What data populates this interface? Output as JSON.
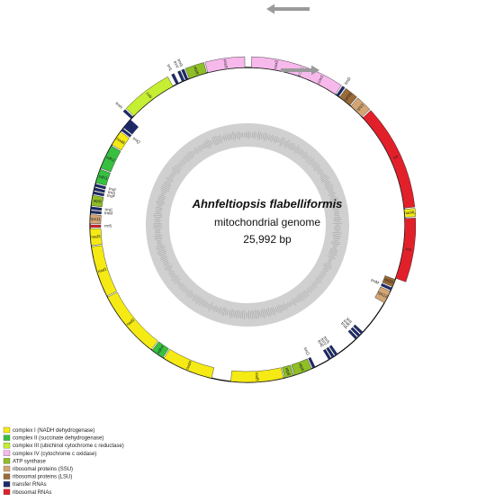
{
  "center": {
    "title": "Ahnfeltiopsis flabelliformis",
    "subtitle": "mitochondrial genome",
    "size": "25,992 bp"
  },
  "colors": {
    "nad": "#f5ea14",
    "sdh": "#37c040",
    "cob": "#c6ee32",
    "cox": "#f7b9ec",
    "atp": "#8fbf25",
    "rps": "#d4a574",
    "rpl": "#9b6b37",
    "trn": "#1c2a6e",
    "rrn": "#e2202a"
  },
  "legend": [
    {
      "label": "complex I (NADH dehydrogenase)",
      "color": "#f5ea14"
    },
    {
      "label": "complex II (succinate dehydrogenase)",
      "color": "#37c040"
    },
    {
      "label": "complex III (ubichinol cytochrome c reductase)",
      "color": "#c6ee32"
    },
    {
      "label": "complex IV (cytochrome c oxidase)",
      "color": "#f7b9ec"
    },
    {
      "label": "ATP synthase",
      "color": "#8fbf25"
    },
    {
      "label": "ribosomal proteins (SSU)",
      "color": "#d4a574"
    },
    {
      "label": "ribosomal proteins (LSU)",
      "color": "#9b6b37"
    },
    {
      "label": "transfer RNAs",
      "color": "#1c2a6e"
    },
    {
      "label": "ribosomal RNAs",
      "color": "#e2202a"
    }
  ],
  "genes": [
    {
      "name": "cox2",
      "start": 3,
      "end": 40,
      "strand": "out",
      "cls": "cox"
    },
    {
      "name": "cox1",
      "start": 41,
      "end": 72,
      "strand": "out",
      "cls": "cox"
    },
    {
      "name": "trnD",
      "start": 73,
      "end": 75,
      "strand": "out",
      "cls": "trn"
    },
    {
      "name": "rpl16",
      "start": 76,
      "end": 86,
      "strand": "out",
      "cls": "rpl"
    },
    {
      "name": "rps3",
      "start": 87,
      "end": 99,
      "strand": "out",
      "cls": "rps"
    },
    {
      "name": "rnl",
      "start": 100,
      "end": 178,
      "strand": "out",
      "cls": "rrn"
    },
    {
      "name": "nad4L",
      "start": 179,
      "end": 185,
      "strand": "out",
      "cls": "nad"
    },
    {
      "name": "rns",
      "start": 186,
      "end": 233,
      "strand": "out",
      "cls": "rrn"
    },
    {
      "name": "rpl20",
      "start": 234,
      "end": 240,
      "strand": "in",
      "cls": "rpl"
    },
    {
      "name": "trnM",
      "start": 241,
      "end": 243,
      "strand": "in",
      "cls": "trn"
    },
    {
      "name": "rps12",
      "start": 244,
      "end": 254,
      "strand": "in",
      "cls": "rps"
    },
    {
      "name": "trnI",
      "start": 282,
      "end": 284,
      "strand": "in",
      "cls": "trn"
    },
    {
      "name": "trnK",
      "start": 285,
      "end": 287,
      "strand": "in",
      "cls": "trn"
    },
    {
      "name": "trnA",
      "start": 288,
      "end": 290,
      "strand": "in",
      "cls": "trn"
    },
    {
      "name": "trnS",
      "start": 308,
      "end": 310,
      "strand": "in",
      "cls": "trn"
    },
    {
      "name": "trnY",
      "start": 311,
      "end": 313,
      "strand": "in",
      "cls": "trn"
    },
    {
      "name": "trnE",
      "start": 314,
      "end": 316,
      "strand": "in",
      "cls": "trn"
    },
    {
      "name": "trnG",
      "start": 328,
      "end": 330,
      "strand": "in",
      "cls": "trn"
    },
    {
      "name": "atp6",
      "start": 331,
      "end": 345,
      "strand": "in",
      "cls": "atp"
    },
    {
      "name": "atp8",
      "start": 346,
      "end": 353,
      "strand": "in",
      "cls": "atp"
    },
    {
      "name": "nad5",
      "start": 354,
      "end": 395,
      "strand": "in",
      "cls": "nad"
    },
    {
      "name": "nad4",
      "start": 410,
      "end": 450,
      "strand": "in",
      "cls": "nad"
    },
    {
      "name": "sdh4",
      "start": 451,
      "end": 461,
      "strand": "in",
      "cls": "sdh"
    },
    {
      "name": "nad2",
      "start": 462,
      "end": 515,
      "strand": "in",
      "cls": "nad"
    },
    {
      "name": "nad1",
      "start": 516,
      "end": 556,
      "strand": "in",
      "cls": "nad"
    },
    {
      "name": "nad3",
      "start": 557,
      "end": 570,
      "strand": "in",
      "cls": "nad"
    },
    {
      "name": "rrn5",
      "start": 571,
      "end": 573,
      "strand": "in",
      "cls": "rrn"
    },
    {
      "name": "rps11",
      "start": 574,
      "end": 581,
      "strand": "in",
      "cls": "rps"
    },
    {
      "name": "trnM",
      "start": 582,
      "end": 584,
      "strand": "in",
      "cls": "trn"
    },
    {
      "name": "trnC",
      "start": 585,
      "end": 587,
      "strand": "in",
      "cls": "trn"
    },
    {
      "name": "atp9",
      "start": 588,
      "end": 596,
      "strand": "in",
      "cls": "atp"
    },
    {
      "name": "trnP",
      "start": 597,
      "end": 599,
      "strand": "in",
      "cls": "trn"
    },
    {
      "name": "trnS",
      "start": 600,
      "end": 602,
      "strand": "in",
      "cls": "trn"
    },
    {
      "name": "trnF",
      "start": 603,
      "end": 605,
      "strand": "in",
      "cls": "trn"
    },
    {
      "name": "sdh3",
      "start": 606,
      "end": 617,
      "strand": "in",
      "cls": "sdh"
    },
    {
      "name": "sdh2",
      "start": 618,
      "end": 637,
      "strand": "in",
      "cls": "sdh"
    },
    {
      "name": "nad6",
      "start": 638,
      "end": 650,
      "strand": "in",
      "cls": "nad"
    },
    {
      "name": "trnQ",
      "start": 651,
      "end": 653,
      "strand": "in",
      "cls": "trn"
    },
    {
      "name": "trnL",
      "start": 654,
      "end": 662,
      "strand": "in",
      "cls": "trn"
    },
    {
      "name": "trnH",
      "start": 663,
      "end": 665,
      "strand": "out",
      "cls": "trn"
    },
    {
      "name": "cob",
      "start": 666,
      "end": 704,
      "strand": "out",
      "cls": "cob"
    },
    {
      "name": "trnL",
      "start": 707,
      "end": 709,
      "strand": "out",
      "cls": "trn"
    },
    {
      "name": "trnV",
      "start": 712,
      "end": 714,
      "strand": "out",
      "cls": "trn"
    },
    {
      "name": "trnG",
      "start": 715,
      "end": 717,
      "strand": "out",
      "cls": "trn"
    },
    {
      "name": "atp8",
      "start": 718,
      "end": 732,
      "strand": "out",
      "cls": "atp"
    },
    {
      "name": "cox3",
      "start": 733,
      "end": 762,
      "strand": "out",
      "cls": "cox"
    }
  ]
}
